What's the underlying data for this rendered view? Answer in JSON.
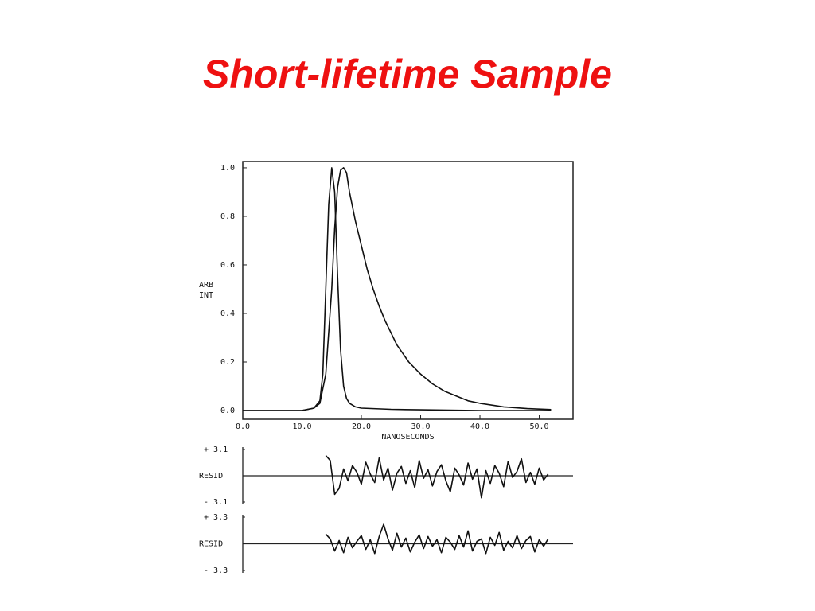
{
  "title": "Short-lifetime Sample",
  "chart_data": [
    {
      "type": "line",
      "xlabel": "NANOSECONDS",
      "ylabel": [
        "ARB",
        "INT"
      ],
      "xlim": [
        0,
        55.7
      ],
      "ylim": [
        -0.036,
        1.026
      ],
      "xticks": [
        {
          "value": 0,
          "label": "0.0"
        },
        {
          "value": 10,
          "label": "10.0"
        },
        {
          "value": 20,
          "label": "20.0"
        },
        {
          "value": 30,
          "label": "30.0"
        },
        {
          "value": 40,
          "label": "40.0"
        },
        {
          "value": 50,
          "label": "50.0"
        }
      ],
      "yticks": [
        {
          "value": 0,
          "label": "0.0"
        },
        {
          "value": 0.2,
          "label": "0.2"
        },
        {
          "value": 0.4,
          "label": "0.4"
        },
        {
          "value": 0.6,
          "label": "0.6"
        },
        {
          "value": 0.8,
          "label": "0.8"
        },
        {
          "value": 1,
          "label": "1.0"
        }
      ],
      "series": [
        {
          "color": "#111111",
          "x": [
            0,
            10,
            12,
            13,
            13.5,
            14,
            14.5,
            15,
            15.5,
            16,
            16.5,
            17,
            17.5,
            18,
            19,
            20,
            25,
            30,
            40,
            52
          ],
          "values": [
            0,
            0,
            0.01,
            0.04,
            0.15,
            0.5,
            0.85,
            1.0,
            0.9,
            0.55,
            0.25,
            0.1,
            0.05,
            0.03,
            0.015,
            0.01,
            0.005,
            0.003,
            0,
            0
          ]
        },
        {
          "color": "#111111",
          "x": [
            0,
            10,
            12,
            13,
            14,
            15,
            15.5,
            16,
            16.5,
            17,
            17.5,
            18,
            19,
            20,
            21,
            22,
            23,
            24,
            25,
            26,
            28,
            30,
            32,
            34,
            36,
            38,
            40,
            44,
            48,
            52
          ],
          "values": [
            0,
            0,
            0.01,
            0.03,
            0.15,
            0.5,
            0.75,
            0.92,
            0.99,
            1.0,
            0.98,
            0.9,
            0.78,
            0.68,
            0.58,
            0.5,
            0.43,
            0.37,
            0.32,
            0.27,
            0.2,
            0.15,
            0.11,
            0.08,
            0.06,
            0.04,
            0.03,
            0.015,
            0.008,
            0.004
          ]
        }
      ]
    },
    {
      "type": "line",
      "ylabel": "RESID",
      "xlim": [
        0,
        55.7
      ],
      "ylim": [
        -3.1,
        3.1
      ],
      "yticks": [
        {
          "value": 3.1,
          "label": "+ 3.1"
        },
        {
          "value": -3.1,
          "label": "- 3.1"
        }
      ],
      "series": [
        {
          "color": "#111111",
          "x": [
            14,
            14.75,
            15.5,
            16.25,
            17,
            17.75,
            18.5,
            19.25,
            20,
            20.75,
            21.5,
            22.25,
            23,
            23.75,
            24.5,
            25.25,
            26,
            26.75,
            27.5,
            28.25,
            29,
            29.75,
            30.5,
            31.25,
            32,
            32.75,
            33.5,
            34.25,
            35,
            35.75,
            36.5,
            37.25,
            38,
            38.75,
            39.5,
            40.25,
            41,
            41.75,
            42.5,
            43.25,
            44,
            44.75,
            45.5,
            46.25,
            47,
            47.75,
            48.5,
            49.25,
            50,
            50.75,
            51.5
          ],
          "values": [
            2.4,
            1.8,
            -2.2,
            -1.5,
            0.8,
            -0.6,
            1.2,
            0.4,
            -1.0,
            1.6,
            0.2,
            -0.8,
            2.1,
            -0.5,
            0.9,
            -1.7,
            0.3,
            1.1,
            -0.9,
            0.6,
            -1.4,
            1.8,
            -0.3,
            0.7,
            -1.2,
            0.5,
            1.3,
            -0.6,
            -1.9,
            0.9,
            0.1,
            -1.1,
            1.5,
            -0.4,
            0.8,
            -2.6,
            0.6,
            -0.9,
            1.2,
            0.3,
            -1.3,
            1.7,
            -0.2,
            0.5,
            2.0,
            -0.8,
            0.4,
            -1.0,
            0.9,
            -0.5,
            0.2
          ]
        }
      ]
    },
    {
      "type": "line",
      "ylabel": "RESID",
      "xlim": [
        0,
        55.7
      ],
      "ylim": [
        -3.3,
        3.3
      ],
      "yticks": [
        {
          "value": 3.3,
          "label": "+ 3.3"
        },
        {
          "value": -3.3,
          "label": "- 3.3"
        }
      ],
      "series": [
        {
          "color": "#111111",
          "x": [
            14,
            14.75,
            15.5,
            16.25,
            17,
            17.75,
            18.5,
            19.25,
            20,
            20.75,
            21.5,
            22.25,
            23,
            23.75,
            24.5,
            25.25,
            26,
            26.75,
            27.5,
            28.25,
            29,
            29.75,
            30.5,
            31.25,
            32,
            32.75,
            33.5,
            34.25,
            35,
            35.75,
            36.5,
            37.25,
            38,
            38.75,
            39.5,
            40.25,
            41,
            41.75,
            42.5,
            43.25,
            44,
            44.75,
            45.5,
            46.25,
            47,
            47.75,
            48.5,
            49.25,
            50,
            50.75,
            51.5
          ],
          "values": [
            1.2,
            0.6,
            -0.9,
            0.4,
            -1.1,
            0.8,
            -0.5,
            0.3,
            1.0,
            -0.7,
            0.5,
            -1.2,
            0.9,
            2.4,
            0.6,
            -0.8,
            1.3,
            -0.4,
            0.7,
            -1.0,
            0.2,
            1.1,
            -0.6,
            0.9,
            -0.3,
            0.5,
            -1.1,
            0.8,
            0.2,
            -0.7,
            1.0,
            -0.4,
            1.6,
            -0.9,
            0.3,
            0.6,
            -1.2,
            0.8,
            -0.2,
            1.4,
            -0.8,
            0.3,
            -0.5,
            1.0,
            -0.6,
            0.4,
            0.9,
            -1.0,
            0.5,
            -0.3,
            0.6
          ]
        }
      ]
    }
  ]
}
